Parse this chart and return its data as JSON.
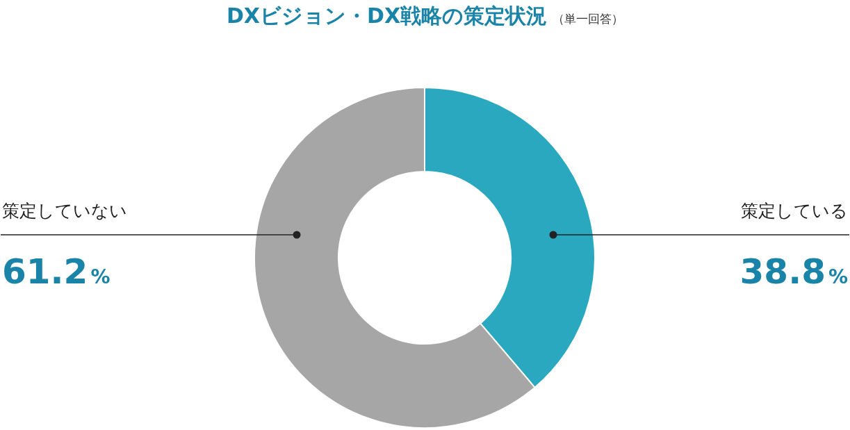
{
  "chart_data": {
    "type": "donut",
    "title": "DXビジョン・DX戦略の策定状況",
    "subtitle": "（単一回答）",
    "categories": [
      "策定している",
      "策定していない"
    ],
    "values": [
      38.8,
      61.2
    ],
    "colors": [
      "#2aa8bf",
      "#a6a6a6"
    ],
    "value_labels": [
      "38.8%",
      "61.2%"
    ]
  }
}
